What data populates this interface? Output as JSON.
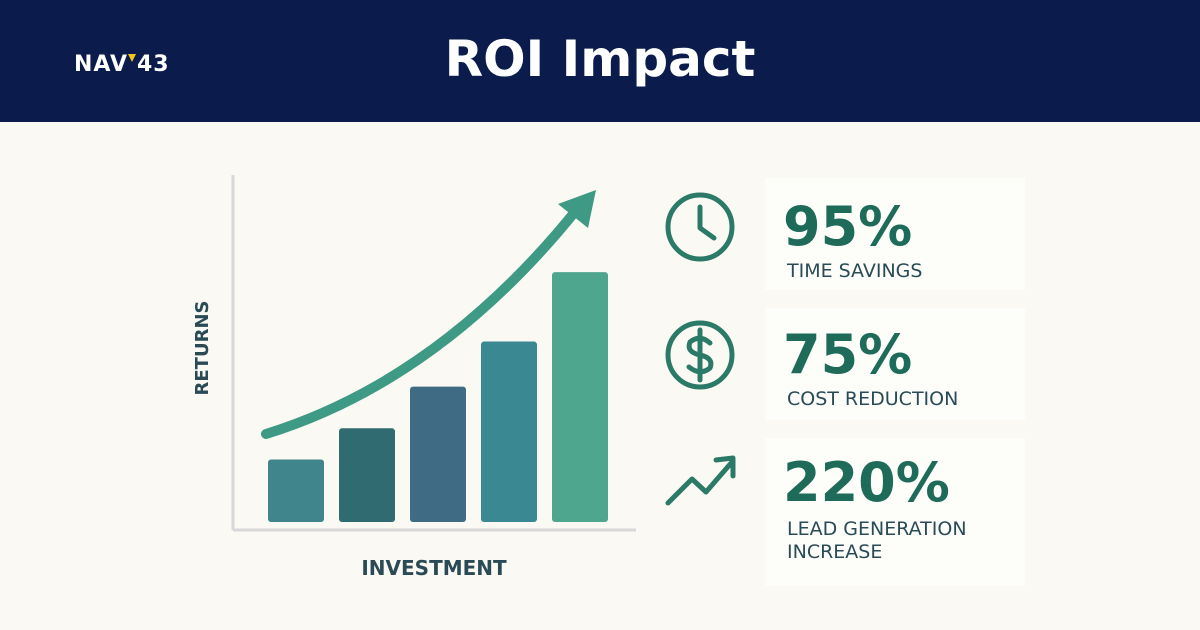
{
  "header": {
    "logo": "NAV",
    "logo_suffix": "43",
    "title": "ROI Impact"
  },
  "chart_data": {
    "type": "bar",
    "xlabel": "INVESTMENT",
    "ylabel": "RETURNS",
    "categories": [
      null,
      null,
      null,
      null,
      null
    ],
    "values": [
      18,
      27,
      39,
      52,
      72
    ],
    "colors": [
      "#40858c",
      "#2f6b70",
      "#3f6c84",
      "#3a8891",
      "#4ea68f"
    ],
    "ylim": [
      0,
      100
    ],
    "grid": false
  },
  "stats": [
    {
      "value": "95%",
      "label": "TIME SAVINGS"
    },
    {
      "value": "75%",
      "label": "COST REDUCTION"
    },
    {
      "value": "220%",
      "label": "LEAD GENERATION INCREASE"
    }
  ]
}
